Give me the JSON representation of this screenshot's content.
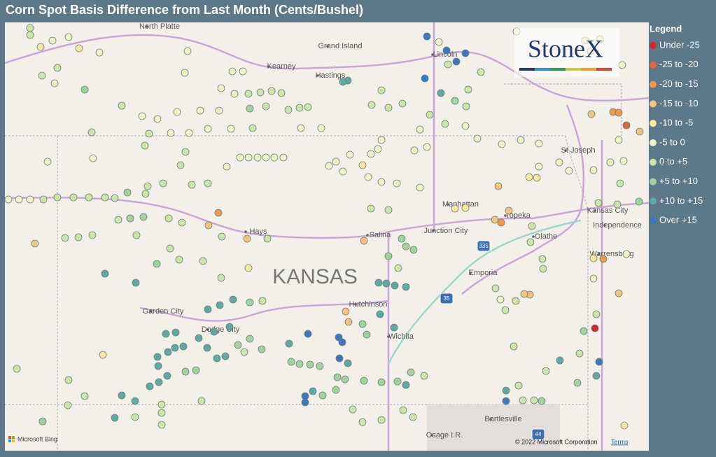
{
  "title": "Corn Spot Basis Difference from Last Month (Cents/Bushel)",
  "legend": {
    "title": "Legend",
    "items": [
      {
        "label": "Under -25",
        "color": "#d62728"
      },
      {
        "label": "-25 to -20",
        "color": "#e5623d"
      },
      {
        "label": "-20 to -15",
        "color": "#f0984c"
      },
      {
        "label": "-15 to -10",
        "color": "#f6c37e"
      },
      {
        "label": "-10 to -5",
        "color": "#f8e8a0"
      },
      {
        "label": "-5 to 0",
        "color": "#eef4c6"
      },
      {
        "label": "0 to +5",
        "color": "#cde6a8"
      },
      {
        "label": "+5 to +10",
        "color": "#a3d39c"
      },
      {
        "label": "+10 to +15",
        "color": "#5ea9a1"
      },
      {
        "label": "Over +15",
        "color": "#3b78c0"
      }
    ]
  },
  "places": [
    "North Platte",
    "Grand Island",
    "Kearney",
    "Hastings",
    "Lincoln",
    "St Joseph",
    "Manhattan",
    "Topeka",
    "Kansas City",
    "Independence",
    "Olathe",
    "Warrensburg",
    "Hays",
    "Salina",
    "Junction City",
    "Emporia",
    "Hutchinson",
    "Wichita",
    "Garden City",
    "Dodge City",
    "Bartlesville",
    "Osage I.R."
  ],
  "state": "KANSAS",
  "shields": [
    "335",
    "35",
    "44"
  ],
  "logo": "StoneX",
  "attribution": {
    "bing": "Microsoft Bing",
    "copyright": "© 2022 Microsoft Corporation",
    "terms": "Terms"
  }
}
